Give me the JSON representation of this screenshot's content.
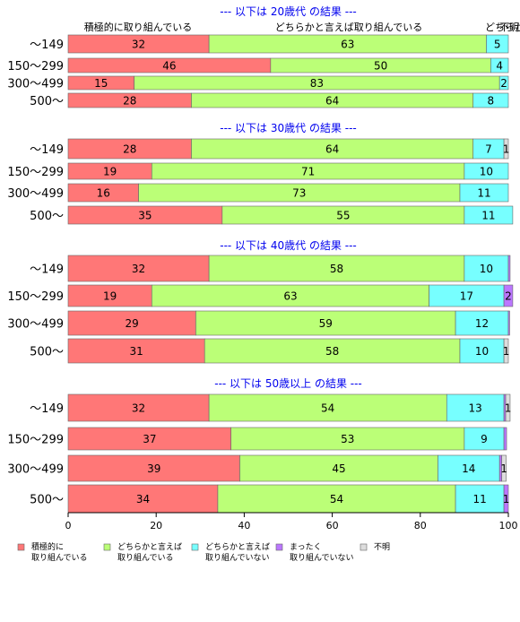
{
  "chart_data": {
    "type": "bar",
    "orientation": "horizontal",
    "stacked": true,
    "xlim": [
      0,
      100
    ],
    "x_ticks": [
      0,
      20,
      40,
      60,
      80,
      100
    ],
    "grid": false,
    "legend_position": "bottom",
    "series": [
      {
        "name": "積極的に\n取り組んでいる",
        "color": "#FF7777"
      },
      {
        "name": "どちらかと言えば\n取り組んでいる",
        "color": "#BBFF77"
      },
      {
        "name": "どちらかと言えば\n取り組んでいない",
        "color": "#77FFFF"
      },
      {
        "name": "まったく\n取り組んでいない",
        "color": "#BB77FF"
      },
      {
        "name": "不明",
        "color": "#DDDDDD"
      }
    ],
    "top_labels": [
      "積極的に取り組んでいる",
      "どちらかと言えば取り組んでいる",
      "どちらかと言",
      "不明"
    ],
    "panels": [
      {
        "title": "--- 以下は 20歳代 の結果 ---",
        "categories": [
          "～149",
          "150～299",
          "300～499",
          "500～"
        ],
        "values": [
          [
            32,
            63,
            5,
            0,
            0
          ],
          [
            46,
            50,
            4,
            0,
            0
          ],
          [
            15,
            83,
            2,
            0,
            0
          ],
          [
            28,
            64,
            8,
            0,
            0
          ]
        ]
      },
      {
        "title": "--- 以下は 30歳代 の結果 ---",
        "categories": [
          "～149",
          "150～299",
          "300～499",
          "500～"
        ],
        "values": [
          [
            28,
            64,
            7,
            0,
            1
          ],
          [
            19,
            71,
            10,
            0,
            0
          ],
          [
            16,
            73,
            11,
            0,
            0
          ],
          [
            35,
            55,
            11,
            0,
            0
          ]
        ]
      },
      {
        "title": "--- 以下は 40歳代 の結果 ---",
        "categories": [
          "～149",
          "150～299",
          "300～499",
          "500～"
        ],
        "values": [
          [
            32,
            58,
            10,
            0.4,
            0
          ],
          [
            19,
            63,
            17,
            2,
            0
          ],
          [
            29,
            59,
            12,
            0.3,
            0
          ],
          [
            31,
            58,
            10,
            0,
            1
          ]
        ]
      },
      {
        "title": "--- 以下は 50歳以上 の結果 ---",
        "categories": [
          "～149",
          "150～299",
          "300～499",
          "500～"
        ],
        "values": [
          [
            32,
            54,
            13,
            0.4,
            1
          ],
          [
            37,
            53,
            9,
            0.6,
            0
          ],
          [
            39,
            45,
            14,
            0.5,
            1
          ],
          [
            34,
            54,
            11,
            1,
            0
          ]
        ]
      }
    ]
  }
}
